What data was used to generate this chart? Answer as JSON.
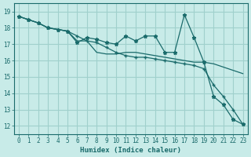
{
  "xlabel": "Humidex (Indice chaleur)",
  "ylabel": "",
  "bg_color": "#c8ebe8",
  "grid_color": "#a0d0cc",
  "line_color": "#1a6b6b",
  "xlim": [
    -0.5,
    23.5
  ],
  "ylim": [
    11.5,
    19.5
  ],
  "yticks": [
    12,
    13,
    14,
    15,
    16,
    17,
    18,
    19
  ],
  "xticks": [
    0,
    1,
    2,
    3,
    4,
    5,
    6,
    7,
    8,
    9,
    10,
    11,
    12,
    13,
    14,
    15,
    16,
    17,
    18,
    19,
    20,
    21,
    22,
    23
  ],
  "series1_x": [
    0,
    1,
    2,
    3,
    4,
    5,
    6,
    7,
    8,
    9,
    10,
    11,
    12,
    13,
    14,
    15,
    16,
    17,
    18,
    19,
    20,
    21,
    22,
    23
  ],
  "series1_y": [
    18.7,
    18.5,
    18.3,
    18.0,
    17.9,
    17.8,
    17.1,
    17.4,
    17.3,
    17.1,
    17.0,
    17.5,
    17.2,
    17.5,
    17.5,
    16.5,
    16.5,
    18.8,
    17.4,
    15.9,
    13.8,
    13.3,
    12.4,
    12.1
  ],
  "series2_x": [
    0,
    1,
    2,
    3,
    4,
    5,
    6,
    7,
    8,
    9,
    10,
    11,
    12,
    13,
    14,
    15,
    16,
    17,
    18,
    19,
    20,
    21,
    22,
    23
  ],
  "series2_y": [
    18.7,
    18.5,
    18.3,
    18.0,
    17.9,
    17.8,
    17.2,
    17.2,
    16.5,
    16.4,
    16.4,
    16.5,
    16.5,
    16.4,
    16.3,
    16.2,
    16.1,
    16.0,
    15.9,
    15.9,
    15.8,
    15.6,
    15.4,
    15.2
  ],
  "series3_x": [
    0,
    1,
    2,
    3,
    4,
    5,
    6,
    7,
    8,
    9,
    10,
    11,
    12,
    13,
    14,
    15,
    16,
    17,
    18,
    19,
    20,
    21,
    22,
    23
  ],
  "series3_y": [
    18.7,
    18.5,
    18.3,
    18.0,
    17.9,
    17.8,
    17.5,
    17.2,
    17.1,
    16.8,
    16.5,
    16.3,
    16.2,
    16.2,
    16.1,
    16.0,
    15.9,
    15.8,
    15.7,
    15.5,
    14.5,
    13.8,
    13.0,
    12.1
  ]
}
